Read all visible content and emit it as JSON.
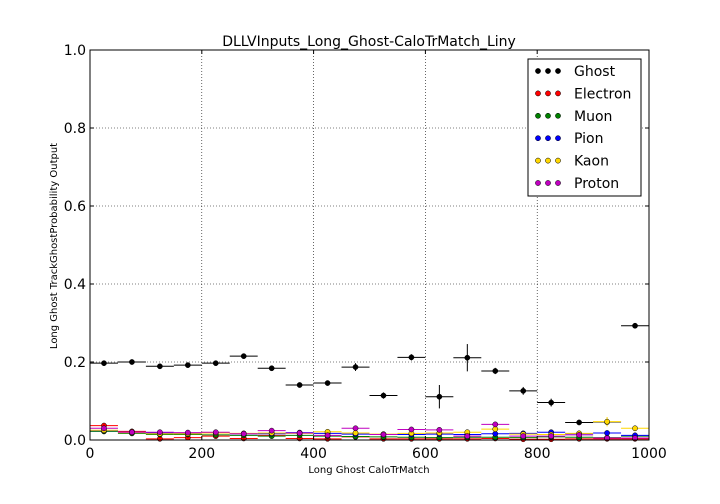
{
  "chart_data": {
    "type": "scatter",
    "title": "DLLVInputs_Long_Ghost-CaloTrMatch_Liny",
    "xlabel": "Long Ghost CaloTrMatch",
    "ylabel": "Long Ghost TrackGhostProbability Output",
    "xlim": [
      0,
      1000
    ],
    "ylim": [
      0,
      1.0
    ],
    "xticks": [
      0,
      200,
      400,
      600,
      800,
      1000
    ],
    "yticks": [
      0.0,
      0.2,
      0.4,
      0.6,
      0.8,
      1.0
    ],
    "xtick_labels": [
      "0",
      "200",
      "400",
      "600",
      "800",
      "1000"
    ],
    "ytick_labels": [
      "0.0",
      "0.2",
      "0.4",
      "0.6",
      "0.8",
      "1.0"
    ],
    "grid": true,
    "legend_position": "top-right",
    "bin_width": 50,
    "x": [
      25,
      75,
      125,
      175,
      225,
      275,
      325,
      375,
      425,
      475,
      525,
      575,
      625,
      675,
      725,
      775,
      825,
      875,
      925,
      975
    ],
    "series": [
      {
        "name": "Ghost",
        "color": "#000000",
        "values": [
          0.197,
          0.2,
          0.189,
          0.192,
          0.197,
          0.215,
          0.184,
          0.141,
          0.146,
          0.187,
          0.114,
          0.212,
          0.111,
          0.211,
          0.177,
          0.126,
          0.096,
          0.045,
          0.046,
          0.293
        ],
        "errors": [
          0.004,
          0.004,
          0.004,
          0.004,
          0.004,
          0.005,
          0.005,
          0.004,
          0.005,
          0.01,
          0.008,
          0.008,
          0.03,
          0.035,
          0.008,
          0.01,
          0.01,
          0.004,
          0.004,
          0.004
        ]
      },
      {
        "name": "Electron",
        "color": "#ff0000",
        "values": [
          0.037,
          0.022,
          0.003,
          0.006,
          0.01,
          0.004,
          0.012,
          0.004,
          0.003,
          0.008,
          0.003,
          0.003,
          0.003,
          0.003,
          0.004,
          0.002,
          0.002,
          0.003,
          0.003,
          0.003
        ],
        "errors": [
          0.002,
          0.002,
          0.001,
          0.001,
          0.002,
          0.001,
          0.002,
          0.001,
          0.001,
          0.002,
          0.001,
          0.001,
          0.001,
          0.001,
          0.001,
          0.001,
          0.001,
          0.001,
          0.001,
          0.001
        ]
      },
      {
        "name": "Muon",
        "color": "#008000",
        "values": [
          0.022,
          0.017,
          0.014,
          0.014,
          0.013,
          0.012,
          0.01,
          0.012,
          0.01,
          0.009,
          0.008,
          0.007,
          0.006,
          0.007,
          0.007,
          0.006,
          0.008,
          0.007,
          0.006,
          0.01
        ],
        "errors": [
          0.002,
          0.002,
          0.002,
          0.002,
          0.002,
          0.002,
          0.002,
          0.002,
          0.002,
          0.002,
          0.002,
          0.002,
          0.002,
          0.002,
          0.002,
          0.002,
          0.002,
          0.002,
          0.002,
          0.002
        ]
      },
      {
        "name": "Pion",
        "color": "#0000ff",
        "values": [
          0.024,
          0.02,
          0.018,
          0.018,
          0.018,
          0.016,
          0.016,
          0.019,
          0.017,
          0.015,
          0.014,
          0.014,
          0.015,
          0.014,
          0.016,
          0.017,
          0.02,
          0.016,
          0.018,
          0.012
        ],
        "errors": [
          0.001,
          0.001,
          0.001,
          0.001,
          0.001,
          0.001,
          0.001,
          0.001,
          0.001,
          0.001,
          0.001,
          0.001,
          0.001,
          0.001,
          0.001,
          0.001,
          0.001,
          0.001,
          0.001,
          0.001
        ]
      },
      {
        "name": "Kaon",
        "color": "#ffd700",
        "values": [
          0.025,
          0.019,
          0.016,
          0.016,
          0.018,
          0.017,
          0.018,
          0.017,
          0.021,
          0.018,
          0.015,
          0.017,
          0.018,
          0.02,
          0.028,
          0.015,
          0.014,
          0.017,
          0.047,
          0.03
        ],
        "errors": [
          0.002,
          0.002,
          0.002,
          0.002,
          0.002,
          0.002,
          0.002,
          0.002,
          0.002,
          0.002,
          0.002,
          0.002,
          0.002,
          0.002,
          0.003,
          0.002,
          0.002,
          0.002,
          0.012,
          0.004
        ]
      },
      {
        "name": "Proton",
        "color": "#bf00bf",
        "values": [
          0.03,
          0.02,
          0.02,
          0.019,
          0.02,
          0.016,
          0.024,
          0.018,
          0.012,
          0.03,
          0.014,
          0.027,
          0.026,
          0.01,
          0.04,
          0.01,
          0.01,
          0.013,
          0.005,
          0.005
        ],
        "errors": [
          0.002,
          0.002,
          0.002,
          0.002,
          0.002,
          0.002,
          0.002,
          0.002,
          0.002,
          0.003,
          0.002,
          0.003,
          0.003,
          0.002,
          0.004,
          0.002,
          0.002,
          0.002,
          0.002,
          0.002
        ]
      }
    ]
  }
}
